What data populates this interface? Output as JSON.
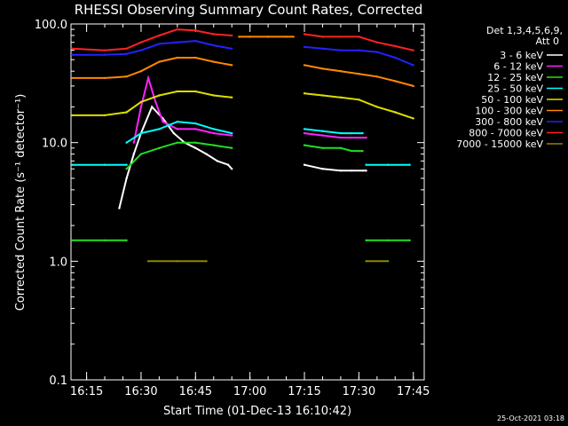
{
  "chart_data": {
    "type": "line",
    "title": "RHESSI Observing Summary Count Rates, Corrected",
    "xlabel": "Start Time (01-Dec-13 16:10:42)",
    "ylabel": "Corrected Count Rate (s⁻¹ detector⁻¹)",
    "y_scale": "log",
    "ylim": [
      0.1,
      100.0
    ],
    "xlim": [
      "16:10:42",
      "17:48:00"
    ],
    "x_ticks": [
      "16:15",
      "16:30",
      "16:45",
      "17:00",
      "17:15",
      "17:30",
      "17:45"
    ],
    "y_ticks": [
      "0.1",
      "1.0",
      "10.0",
      "100.0"
    ],
    "legend_header": [
      "Det 1,3,4,5,6,9,",
      "Att 0"
    ],
    "legend_position": "right",
    "stamp": "25-Oct-2021 03:18",
    "series": [
      {
        "name": "3 - 6 keV",
        "color": "#ffffff",
        "segments": [
          {
            "x": [
              "16:24",
              "16:26",
              "16:28",
              "16:30",
              "16:33",
              "16:36",
              "16:39",
              "16:42",
              "16:45",
              "16:48",
              "16:51",
              "16:54",
              "16:55"
            ],
            "y": [
              2.8,
              5.0,
              8.0,
              12.0,
              20.0,
              16.0,
              12.0,
              10.0,
              9.0,
              8.0,
              7.0,
              6.5,
              6.0
            ]
          },
          {
            "x": [
              "17:15",
              "17:20",
              "17:25",
              "17:28",
              "17:31",
              "17:32"
            ],
            "y": [
              6.5,
              6.0,
              5.8,
              5.8,
              5.8,
              5.8
            ]
          }
        ]
      },
      {
        "name": "6 - 12 keV",
        "color": "#ff22ff",
        "segments": [
          {
            "x": [
              "16:28",
              "16:30",
              "16:32",
              "16:34",
              "16:36",
              "16:40",
              "16:45",
              "16:50",
              "16:55"
            ],
            "y": [
              10.0,
              20.0,
              35.0,
              22.0,
              15.0,
              13.0,
              13.0,
              12.0,
              11.5
            ]
          },
          {
            "x": [
              "17:15",
              "17:20",
              "17:25",
              "17:28",
              "17:32"
            ],
            "y": [
              12.0,
              11.5,
              11.0,
              11.0,
              11.0
            ]
          }
        ]
      },
      {
        "name": "12 - 25 keV",
        "color": "#22dd22",
        "segments": [
          {
            "x": [
              "16:11",
              "16:20",
              "16:26"
            ],
            "y": [
              1.5,
              1.5,
              1.5
            ]
          },
          {
            "x": [
              "16:26",
              "16:30",
              "16:35",
              "16:40",
              "16:45",
              "16:50",
              "16:55"
            ],
            "y": [
              6.0,
              8.0,
              9.0,
              10.0,
              10.0,
              9.5,
              9.0
            ]
          },
          {
            "x": [
              "17:15",
              "17:20",
              "17:25",
              "17:28",
              "17:31"
            ],
            "y": [
              9.5,
              9.0,
              9.0,
              8.5,
              8.5
            ]
          },
          {
            "x": [
              "17:32",
              "17:38",
              "17:44"
            ],
            "y": [
              1.5,
              1.5,
              1.5
            ]
          }
        ]
      },
      {
        "name": "25 - 50 keV",
        "color": "#00ffff",
        "segments": [
          {
            "x": [
              "16:11",
              "16:20",
              "16:26"
            ],
            "y": [
              6.5,
              6.5,
              6.5
            ]
          },
          {
            "x": [
              "16:26",
              "16:30",
              "16:35",
              "16:40",
              "16:45",
              "16:50",
              "16:55"
            ],
            "y": [
              10.0,
              12.0,
              13.0,
              15.0,
              14.5,
              13.0,
              12.0
            ]
          },
          {
            "x": [
              "17:15",
              "17:20",
              "17:25",
              "17:28",
              "17:31"
            ],
            "y": [
              13.0,
              12.5,
              12.0,
              12.0,
              12.0
            ]
          },
          {
            "x": [
              "17:32",
              "17:38",
              "17:44"
            ],
            "y": [
              6.5,
              6.5,
              6.5
            ]
          }
        ]
      },
      {
        "name": "50 - 100 keV",
        "color": "#dddd00",
        "segments": [
          {
            "x": [
              "16:11",
              "16:20",
              "16:26",
              "16:30",
              "16:35",
              "16:40",
              "16:45",
              "16:50",
              "16:55"
            ],
            "y": [
              17.0,
              17.0,
              18.0,
              22.0,
              25.0,
              27.0,
              27.0,
              25.0,
              24.0
            ]
          },
          {
            "x": [
              "17:15",
              "17:20",
              "17:25",
              "17:30",
              "17:35",
              "17:40",
              "17:45"
            ],
            "y": [
              26.0,
              25.0,
              24.0,
              23.0,
              20.0,
              18.0,
              16.0
            ]
          }
        ]
      },
      {
        "name": "100 - 300 keV",
        "color": "#ff8800",
        "segments": [
          {
            "x": [
              "16:11",
              "16:20",
              "16:26",
              "16:30",
              "16:35",
              "16:40",
              "16:45",
              "16:50",
              "16:55"
            ],
            "y": [
              35.0,
              35.0,
              36.0,
              40.0,
              48.0,
              52.0,
              52.0,
              48.0,
              45.0
            ]
          },
          {
            "x": [
              "16:57",
              "17:00",
              "17:05",
              "17:10",
              "17:12"
            ],
            "y": [
              78.0,
              78.0,
              78.0,
              78.0,
              78.0
            ]
          },
          {
            "x": [
              "17:15",
              "17:20",
              "17:25",
              "17:30",
              "17:35",
              "17:40",
              "17:45"
            ],
            "y": [
              45.0,
              42.0,
              40.0,
              38.0,
              36.0,
              33.0,
              30.0
            ]
          }
        ]
      },
      {
        "name": "300 - 800 keV",
        "color": "#2222ff",
        "segments": [
          {
            "x": [
              "16:11",
              "16:20",
              "16:26",
              "16:30",
              "16:35",
              "16:40",
              "16:45",
              "16:50",
              "16:55"
            ],
            "y": [
              55.0,
              55.0,
              56.0,
              60.0,
              68.0,
              70.0,
              72.0,
              66.0,
              62.0
            ]
          },
          {
            "x": [
              "17:15",
              "17:20",
              "17:25",
              "17:30",
              "17:35",
              "17:40",
              "17:45"
            ],
            "y": [
              64.0,
              62.0,
              60.0,
              60.0,
              58.0,
              52.0,
              45.0
            ]
          }
        ]
      },
      {
        "name": "800 - 7000 keV",
        "color": "#ff2222",
        "segments": [
          {
            "x": [
              "16:11",
              "16:20",
              "16:26",
              "16:30",
              "16:35",
              "16:40",
              "16:45",
              "16:50",
              "16:55"
            ],
            "y": [
              62.0,
              60.0,
              62.0,
              70.0,
              80.0,
              90.0,
              88.0,
              82.0,
              80.0
            ]
          },
          {
            "x": [
              "17:15",
              "17:20",
              "17:25",
              "17:30",
              "17:35",
              "17:40",
              "17:45"
            ],
            "y": [
              82.0,
              78.0,
              78.0,
              78.0,
              70.0,
              65.0,
              60.0
            ]
          }
        ]
      },
      {
        "name": "7000 - 15000 keV",
        "color": "#888800",
        "segments": [
          {
            "x": [
              "16:32",
              "16:40",
              "16:48"
            ],
            "y": [
              1.0,
              1.0,
              1.0
            ]
          },
          {
            "x": [
              "17:32",
              "17:38"
            ],
            "y": [
              1.0,
              1.0
            ]
          }
        ]
      }
    ]
  }
}
